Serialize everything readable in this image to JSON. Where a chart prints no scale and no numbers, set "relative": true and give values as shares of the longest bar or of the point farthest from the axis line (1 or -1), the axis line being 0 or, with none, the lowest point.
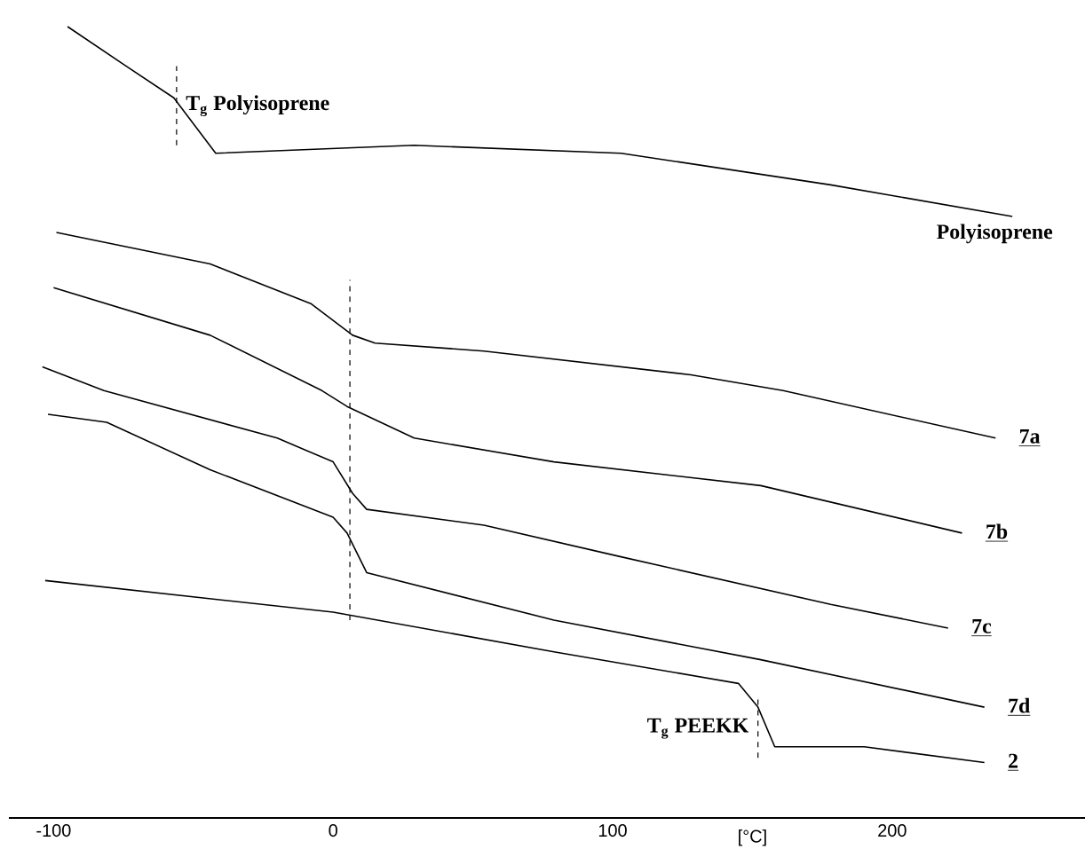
{
  "chart_data": {
    "type": "line",
    "relative": true,
    "xlabel": "[°C]",
    "xlim": [
      -116,
      269
    ],
    "xticks": [
      -100,
      0,
      100,
      200
    ],
    "series": [
      {
        "name": "Polyisoprene",
        "color": "#000000",
        "x": [
          -95,
          -74,
          -57,
          -42,
          29,
          103,
          178,
          243
        ],
        "values": [
          1.0,
          0.95,
          0.91,
          0.84,
          0.85,
          0.84,
          0.8,
          0.76
        ]
      },
      {
        "name": "**7a**",
        "color": "#000000",
        "x": [
          -99,
          -44,
          -8,
          7,
          15,
          54,
          128,
          161,
          237
        ],
        "values": [
          0.74,
          0.7,
          0.65,
          0.61,
          0.6,
          0.59,
          0.56,
          0.54,
          0.48
        ]
      },
      {
        "name": "**7b**",
        "color": "#000000",
        "x": [
          -100,
          -44,
          -4,
          5,
          29,
          79,
          153,
          225
        ],
        "values": [
          0.67,
          0.61,
          0.54,
          0.52,
          0.48,
          0.45,
          0.42,
          0.36
        ]
      },
      {
        "name": "**7c**",
        "color": "#000000",
        "x": [
          -104,
          -82,
          -20,
          0,
          7,
          12,
          54,
          103,
          178,
          220
        ],
        "values": [
          0.57,
          0.54,
          0.48,
          0.45,
          0.41,
          0.39,
          0.37,
          0.33,
          0.27,
          0.24
        ]
      },
      {
        "name": "**7d**",
        "color": "#000000",
        "x": [
          -102,
          -81,
          -44,
          0,
          5,
          12,
          79,
          153,
          233
        ],
        "values": [
          0.51,
          0.5,
          0.44,
          0.38,
          0.36,
          0.31,
          0.25,
          0.2,
          0.14
        ]
      },
      {
        "name": "**2**",
        "color": "#000000",
        "x": [
          -103,
          0,
          79,
          145,
          152,
          158,
          168,
          190,
          233
        ],
        "values": [
          0.3,
          0.26,
          0.21,
          0.17,
          0.14,
          0.09,
          0.09,
          0.09,
          0.07
        ]
      }
    ],
    "ref_lines": [
      {
        "axis": "x",
        "value": -56,
        "label": "T$_{g}$ Polyisoprene",
        "line_style": "dashed"
      },
      {
        "axis": "x",
        "value": 6,
        "line_style": "dashed"
      },
      {
        "axis": "x",
        "value": 152,
        "label": "T$_{g}$ PEEKK",
        "line_style": "dashed"
      }
    ]
  }
}
